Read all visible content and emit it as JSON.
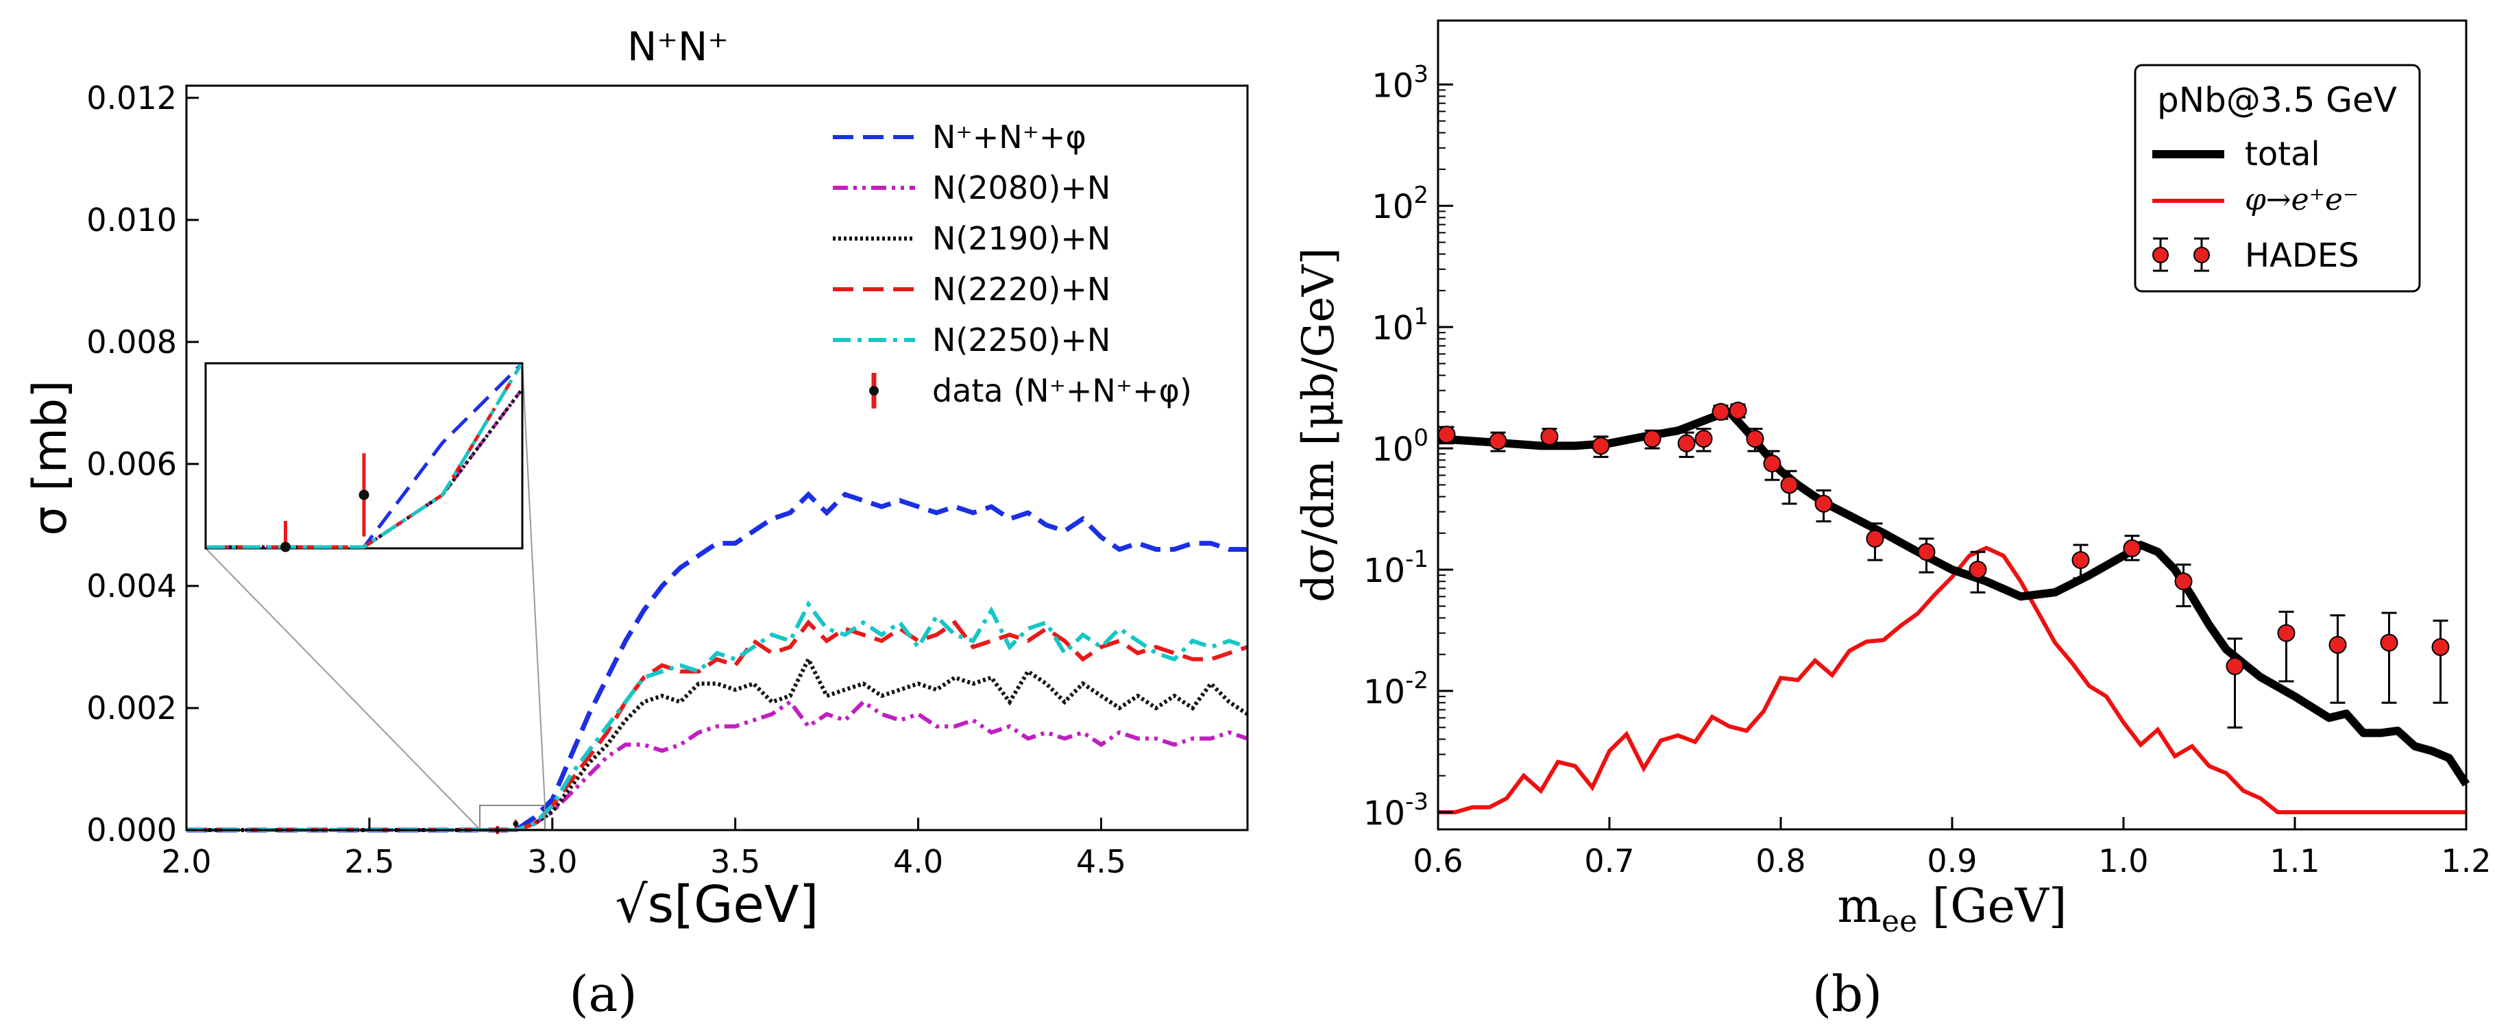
{
  "figure": {
    "panel_a_caption": "(a)",
    "panel_b_caption": "(b)"
  },
  "chart_data": [
    {
      "type": "line",
      "title": "N⁺N⁺",
      "xlabel": "√s[GeV]",
      "ylabel": "σ [mb]",
      "xlim": [
        2.0,
        4.9
      ],
      "ylim": [
        0.0,
        0.0122
      ],
      "x_ticks": [
        "2.0",
        "2.5",
        "3.0",
        "3.5",
        "4.0",
        "4.5"
      ],
      "y_ticks": [
        "0.000",
        "0.002",
        "0.004",
        "0.006",
        "0.008",
        "0.010",
        "0.012"
      ],
      "legend_position": "upper right",
      "grid": false,
      "series": [
        {
          "name": "N⁺+N⁺+φ",
          "color": "#1a2fe6",
          "dash": "dashed",
          "x": [
            2.0,
            2.9,
            2.95,
            3.0,
            3.05,
            3.1,
            3.15,
            3.2,
            3.25,
            3.3,
            3.35,
            3.4,
            3.45,
            3.5,
            3.55,
            3.6,
            3.65,
            3.7,
            3.75,
            3.8,
            3.85,
            3.9,
            3.95,
            4.0,
            4.05,
            4.1,
            4.15,
            4.2,
            4.25,
            4.3,
            4.35,
            4.4,
            4.45,
            4.5,
            4.55,
            4.6,
            4.65,
            4.7,
            4.75,
            4.8,
            4.85,
            4.9
          ],
          "y": [
            0.0,
            0.0,
            0.0002,
            0.0005,
            0.0012,
            0.0019,
            0.0025,
            0.0031,
            0.0036,
            0.004,
            0.0043,
            0.0045,
            0.0047,
            0.0047,
            0.0049,
            0.0051,
            0.0052,
            0.0055,
            0.0052,
            0.0055,
            0.0054,
            0.0053,
            0.0054,
            0.0053,
            0.0052,
            0.0053,
            0.0052,
            0.0053,
            0.0051,
            0.0052,
            0.005,
            0.0049,
            0.0051,
            0.0048,
            0.0046,
            0.0047,
            0.0046,
            0.0046,
            0.0047,
            0.0047,
            0.0046,
            0.0046
          ]
        },
        {
          "name": "N(2080)+N",
          "color": "#c020c0",
          "dash": "dashdotdot",
          "x": [
            2.0,
            2.9,
            2.95,
            3.0,
            3.05,
            3.1,
            3.15,
            3.2,
            3.25,
            3.3,
            3.35,
            3.4,
            3.45,
            3.5,
            3.55,
            3.6,
            3.65,
            3.7,
            3.75,
            3.8,
            3.85,
            3.9,
            3.95,
            4.0,
            4.05,
            4.1,
            4.15,
            4.2,
            4.25,
            4.3,
            4.35,
            4.4,
            4.45,
            4.5,
            4.55,
            4.6,
            4.65,
            4.7,
            4.75,
            4.8,
            4.85,
            4.9
          ],
          "y": [
            0.0,
            0.0,
            0.0001,
            0.0003,
            0.0006,
            0.0009,
            0.0012,
            0.0014,
            0.0014,
            0.0013,
            0.0014,
            0.0016,
            0.0017,
            0.0017,
            0.0018,
            0.0019,
            0.0021,
            0.0017,
            0.0019,
            0.0018,
            0.0021,
            0.0019,
            0.0018,
            0.0019,
            0.0017,
            0.0017,
            0.0018,
            0.0016,
            0.0017,
            0.0015,
            0.0016,
            0.0015,
            0.0016,
            0.0014,
            0.0016,
            0.0015,
            0.0015,
            0.0014,
            0.0015,
            0.0015,
            0.0016,
            0.0015
          ]
        },
        {
          "name": "N(2190)+N",
          "color": "#111111",
          "dash": "dotted",
          "x": [
            2.0,
            2.9,
            2.95,
            3.0,
            3.05,
            3.1,
            3.15,
            3.2,
            3.25,
            3.3,
            3.35,
            3.4,
            3.45,
            3.5,
            3.55,
            3.6,
            3.65,
            3.7,
            3.75,
            3.8,
            3.85,
            3.9,
            3.95,
            4.0,
            4.05,
            4.1,
            4.15,
            4.2,
            4.25,
            4.3,
            4.35,
            4.4,
            4.45,
            4.5,
            4.55,
            4.6,
            4.65,
            4.7,
            4.75,
            4.8,
            4.85,
            4.9
          ],
          "y": [
            0.0,
            0.0,
            0.0001,
            0.0003,
            0.0007,
            0.0011,
            0.0014,
            0.0018,
            0.0021,
            0.0022,
            0.0021,
            0.0024,
            0.0024,
            0.0023,
            0.0024,
            0.0021,
            0.0022,
            0.0028,
            0.0022,
            0.0023,
            0.0024,
            0.0022,
            0.0023,
            0.0024,
            0.0023,
            0.0025,
            0.0024,
            0.0025,
            0.0021,
            0.0026,
            0.0024,
            0.0021,
            0.0024,
            0.0022,
            0.002,
            0.0022,
            0.002,
            0.0022,
            0.002,
            0.0024,
            0.0021,
            0.0019
          ]
        },
        {
          "name": "N(2220)+N",
          "color": "#e81a1a",
          "dash": "dashed",
          "x": [
            2.0,
            2.9,
            2.95,
            3.0,
            3.05,
            3.1,
            3.15,
            3.2,
            3.25,
            3.3,
            3.35,
            3.4,
            3.45,
            3.5,
            3.55,
            3.6,
            3.65,
            3.7,
            3.75,
            3.8,
            3.85,
            3.9,
            3.95,
            4.0,
            4.05,
            4.1,
            4.15,
            4.2,
            4.25,
            4.3,
            4.35,
            4.4,
            4.45,
            4.5,
            4.55,
            4.6,
            4.65,
            4.7,
            4.75,
            4.8,
            4.85,
            4.9
          ],
          "y": [
            0.0,
            0.0,
            0.0001,
            0.0004,
            0.0008,
            0.0012,
            0.0016,
            0.0021,
            0.0025,
            0.0027,
            0.0026,
            0.0026,
            0.0028,
            0.0027,
            0.0031,
            0.0029,
            0.003,
            0.0034,
            0.0031,
            0.0033,
            0.0032,
            0.0031,
            0.0033,
            0.0031,
            0.0032,
            0.0034,
            0.003,
            0.0031,
            0.0032,
            0.0031,
            0.0033,
            0.0031,
            0.0028,
            0.003,
            0.0031,
            0.0029,
            0.003,
            0.0029,
            0.0028,
            0.0028,
            0.0029,
            0.003
          ]
        },
        {
          "name": "N(2250)+N",
          "color": "#16c6c6",
          "dash": "dashdot",
          "x": [
            2.0,
            2.9,
            2.95,
            3.0,
            3.05,
            3.1,
            3.15,
            3.2,
            3.25,
            3.3,
            3.35,
            3.4,
            3.45,
            3.5,
            3.55,
            3.6,
            3.65,
            3.7,
            3.75,
            3.8,
            3.85,
            3.9,
            3.95,
            4.0,
            4.05,
            4.1,
            4.15,
            4.2,
            4.25,
            4.3,
            4.35,
            4.4,
            4.45,
            4.5,
            4.55,
            4.6,
            4.65,
            4.7,
            4.75,
            4.8,
            4.85,
            4.9
          ],
          "y": [
            0.0,
            0.0,
            0.0001,
            0.0004,
            0.0009,
            0.0013,
            0.0017,
            0.0021,
            0.0025,
            0.0026,
            0.0027,
            0.0026,
            0.0029,
            0.0028,
            0.003,
            0.0032,
            0.0031,
            0.0037,
            0.0033,
            0.0032,
            0.0034,
            0.0032,
            0.0034,
            0.003,
            0.0035,
            0.0032,
            0.0031,
            0.0036,
            0.003,
            0.0033,
            0.0034,
            0.0029,
            0.0032,
            0.003,
            0.0033,
            0.0031,
            0.0029,
            0.0028,
            0.0031,
            0.003,
            0.0031,
            0.003
          ]
        }
      ],
      "data_points": {
        "name": "data (N⁺+N⁺+φ)",
        "x": [
          2.85,
          2.9
        ],
        "y": [
          0.0,
          0.0001
        ],
        "err": [
          5e-05,
          8e-05
        ]
      },
      "inset": {
        "xlim": [
          2.8,
          3.0
        ],
        "ylim": [
          0.0,
          0.00035
        ]
      }
    },
    {
      "type": "line",
      "title": "",
      "xlabel": "m_ee [GeV]",
      "ylabel": "dσ/dm [μb/GeV]",
      "xlim": [
        0.6,
        1.2
      ],
      "ylim": [
        0.001,
        2000
      ],
      "yscale": "log",
      "x_ticks": [
        "0.6",
        "0.7",
        "0.8",
        "0.9",
        "1.0",
        "1.1",
        "1.2"
      ],
      "legend_title": "pNb@3.5 GeV",
      "legend_position": "upper right",
      "grid": false,
      "series": [
        {
          "name": "total",
          "color": "#000000",
          "x": [
            0.6,
            0.62,
            0.64,
            0.66,
            0.68,
            0.7,
            0.72,
            0.74,
            0.76,
            0.77,
            0.78,
            0.79,
            0.8,
            0.81,
            0.82,
            0.83,
            0.84,
            0.86,
            0.88,
            0.9,
            0.92,
            0.94,
            0.96,
            0.98,
            1.0,
            1.01,
            1.02,
            1.03,
            1.04,
            1.05,
            1.06,
            1.08,
            1.1,
            1.12,
            1.13,
            1.14,
            1.15,
            1.16,
            1.17,
            1.18,
            1.19,
            1.2
          ],
          "y": [
            1.2,
            1.15,
            1.1,
            1.05,
            1.05,
            1.1,
            1.25,
            1.4,
            1.8,
            2.0,
            1.4,
            0.95,
            0.65,
            0.5,
            0.4,
            0.33,
            0.28,
            0.2,
            0.14,
            0.1,
            0.08,
            0.06,
            0.065,
            0.09,
            0.13,
            0.16,
            0.14,
            0.1,
            0.06,
            0.035,
            0.022,
            0.013,
            0.009,
            0.006,
            0.0065,
            0.0045,
            0.0045,
            0.0047,
            0.0035,
            0.0032,
            0.0028,
            0.0017
          ]
        },
        {
          "name": "φ→e⁺e⁻",
          "color": "#ee1111",
          "x": [
            0.6,
            0.61,
            0.62,
            0.63,
            0.64,
            0.65,
            0.66,
            0.67,
            0.68,
            0.69,
            0.7,
            0.71,
            0.72,
            0.73,
            0.74,
            0.75,
            0.76,
            0.77,
            0.78,
            0.79,
            0.8,
            0.81,
            0.82,
            0.83,
            0.84,
            0.85,
            0.86,
            0.87,
            0.88,
            0.89,
            0.9,
            0.91,
            0.92,
            0.93,
            0.94,
            0.95,
            0.96,
            0.97,
            0.98,
            0.99,
            1.0,
            1.01,
            1.02,
            1.03,
            1.04,
            1.05,
            1.06,
            1.07,
            1.08,
            1.09,
            1.1,
            1.11,
            1.12,
            1.13,
            1.14,
            1.15,
            1.16,
            1.17,
            1.18,
            1.19,
            1.2
          ],
          "y": [
            0.001,
            0.001,
            0.0011,
            0.0011,
            0.0013,
            0.002,
            0.0015,
            0.0026,
            0.0024,
            0.0016,
            0.0032,
            0.0044,
            0.0023,
            0.0039,
            0.0043,
            0.0038,
            0.0061,
            0.0051,
            0.0047,
            0.0068,
            0.0128,
            0.0123,
            0.0178,
            0.0135,
            0.0214,
            0.0255,
            0.0263,
            0.0345,
            0.0436,
            0.0626,
            0.087,
            0.13,
            0.151,
            0.13,
            0.08,
            0.045,
            0.025,
            0.017,
            0.011,
            0.009,
            0.0055,
            0.0036,
            0.0048,
            0.0029,
            0.0035,
            0.0024,
            0.0021,
            0.0015,
            0.0013,
            0.001,
            0.001,
            0.001,
            0.001,
            0.001,
            0.001,
            0.001,
            0.001,
            0.001,
            0.001,
            0.001,
            0.001
          ]
        }
      ],
      "data_points": {
        "name": "HADES",
        "color": "#e82020",
        "x": [
          0.605,
          0.635,
          0.665,
          0.695,
          0.725,
          0.745,
          0.755,
          0.765,
          0.775,
          0.785,
          0.795,
          0.805,
          0.825,
          0.855,
          0.885,
          0.915,
          0.975,
          1.005,
          1.035,
          1.065,
          1.095,
          1.125,
          1.155,
          1.185
        ],
        "y": [
          1.3,
          1.15,
          1.25,
          1.05,
          1.2,
          1.1,
          1.2,
          2.0,
          2.05,
          1.2,
          0.75,
          0.5,
          0.35,
          0.18,
          0.14,
          0.1,
          0.12,
          0.15,
          0.08,
          0.016,
          0.03,
          0.024,
          0.025,
          0.023
        ],
        "err_low": [
          1.1,
          0.95,
          1.05,
          0.85,
          1.0,
          0.85,
          0.95,
          1.75,
          1.8,
          0.95,
          0.55,
          0.35,
          0.25,
          0.12,
          0.095,
          0.065,
          0.085,
          0.12,
          0.05,
          0.005,
          0.012,
          0.008,
          0.008,
          0.008
        ],
        "err_high": [
          1.5,
          1.35,
          1.45,
          1.25,
          1.4,
          1.35,
          1.45,
          2.25,
          2.3,
          1.45,
          0.95,
          0.65,
          0.45,
          0.24,
          0.18,
          0.14,
          0.16,
          0.19,
          0.11,
          0.027,
          0.045,
          0.042,
          0.044,
          0.038
        ]
      }
    }
  ]
}
